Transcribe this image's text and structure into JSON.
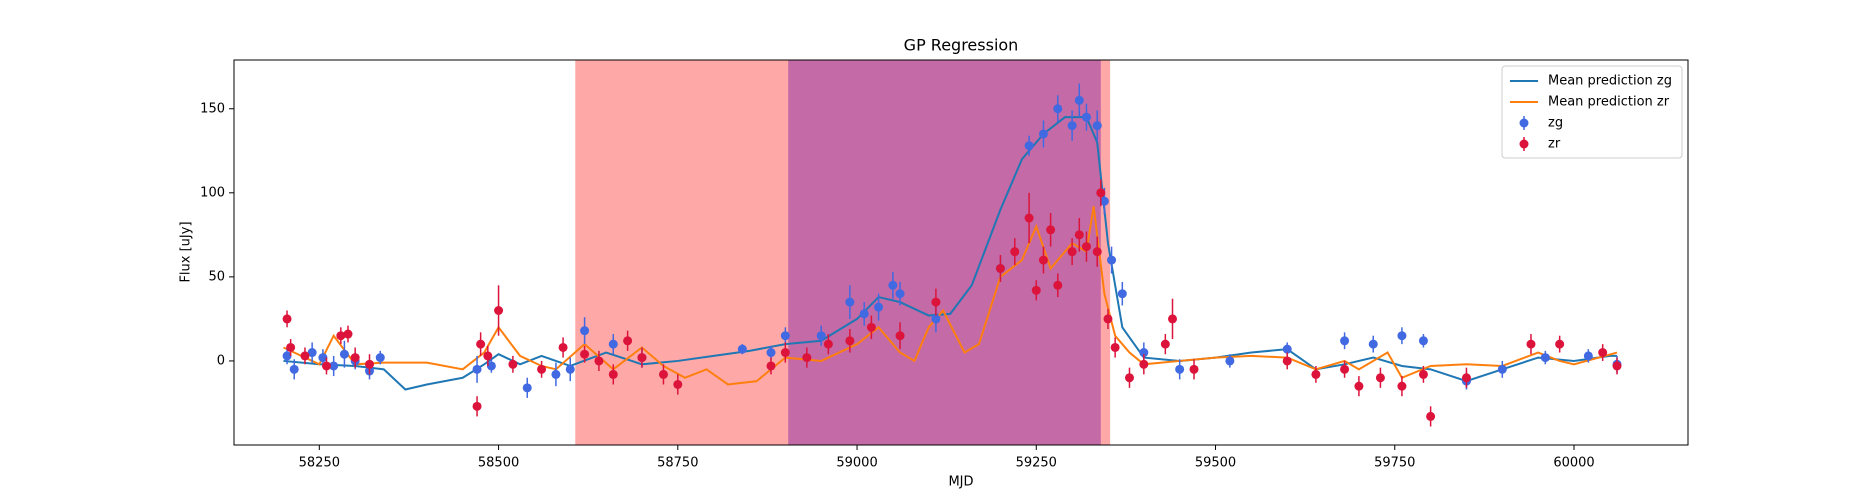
{
  "chart_data": {
    "type": "errorbar",
    "title": "GP Regression",
    "x_label": "MJD",
    "y_label": "Flux [uJy]",
    "xlim": [
      58131,
      60159
    ],
    "ylim": [
      -50,
      179
    ],
    "xticks": [
      58250,
      58500,
      58750,
      59000,
      59250,
      59500,
      59750,
      60000
    ],
    "yticks": [
      0,
      50,
      100,
      150
    ],
    "legend": "upper right",
    "spans": [
      {
        "start": 58607,
        "end": 59353,
        "color": "#ffa8a8"
      },
      {
        "start": 58904,
        "end": 59340,
        "color": "#c46aa6"
      }
    ],
    "lines": [
      {
        "name": "Mean prediction zg",
        "color": "#1f77b4",
        "x": [
          58200,
          58250,
          58300,
          58340,
          58370,
          58400,
          58450,
          58480,
          58500,
          58530,
          58560,
          58600,
          58650,
          58700,
          58750,
          58800,
          58850,
          58900,
          58950,
          59000,
          59030,
          59060,
          59100,
          59130,
          59160,
          59200,
          59230,
          59260,
          59290,
          59320,
          59335,
          59350,
          59370,
          59400,
          59450,
          59500,
          59550,
          59600,
          59640,
          59680,
          59720,
          59760,
          59800,
          59850,
          59900,
          59950,
          60000,
          60050,
          60060
        ],
        "values": [
          0,
          -2,
          -3,
          -5,
          -17,
          -14,
          -10,
          -2,
          4,
          -2,
          3,
          -3,
          5,
          -2,
          0,
          3,
          6,
          10,
          12,
          25,
          38,
          35,
          27,
          28,
          45,
          90,
          120,
          135,
          145,
          145,
          130,
          70,
          20,
          2,
          0,
          2,
          5,
          7,
          -5,
          -2,
          2,
          -3,
          -5,
          -12,
          -5,
          2,
          0,
          3,
          3
        ]
      },
      {
        "name": "Mean prediction zr",
        "color": "#ff7f0e",
        "x": [
          58200,
          58250,
          58270,
          58300,
          58340,
          58400,
          58450,
          58480,
          58500,
          58530,
          58560,
          58580,
          58620,
          58660,
          58700,
          58730,
          58760,
          58790,
          58820,
          58860,
          58880,
          58900,
          58950,
          59000,
          59030,
          59060,
          59080,
          59100,
          59120,
          59150,
          59170,
          59200,
          59230,
          59250,
          59270,
          59300,
          59320,
          59330,
          59345,
          59360,
          59380,
          59400,
          59450,
          59500,
          59550,
          59600,
          59640,
          59680,
          59700,
          59740,
          59760,
          59800,
          59850,
          59900,
          59950,
          59980,
          60000,
          60060
        ],
        "values": [
          8,
          -2,
          15,
          -2,
          -1,
          -1,
          -5,
          5,
          20,
          3,
          -3,
          -5,
          10,
          -5,
          8,
          -3,
          -10,
          -5,
          -14,
          -12,
          -5,
          2,
          0,
          10,
          20,
          5,
          0,
          20,
          30,
          5,
          10,
          50,
          60,
          80,
          55,
          70,
          65,
          92,
          40,
          15,
          5,
          -2,
          0,
          2,
          3,
          2,
          -5,
          0,
          -5,
          5,
          -10,
          -3,
          -2,
          -3,
          5,
          0,
          -2,
          5
        ]
      }
    ],
    "series": [
      {
        "name": "zg",
        "color": "#4169e1",
        "x": [
          58205,
          58215,
          58240,
          58255,
          58270,
          58285,
          58300,
          58320,
          58335,
          58470,
          58490,
          58540,
          58580,
          58600,
          58620,
          58660,
          58700,
          58840,
          58880,
          58900,
          58950,
          58990,
          59010,
          59030,
          59050,
          59060,
          59110,
          59200,
          59240,
          59260,
          59280,
          59300,
          59310,
          59320,
          59335,
          59345,
          59355,
          59370,
          59400,
          59450,
          59520,
          59600,
          59680,
          59720,
          59760,
          59790,
          59850,
          59900,
          59960,
          60020,
          60060
        ],
        "values": [
          3,
          -5,
          5,
          2,
          -3,
          4,
          0,
          -6,
          2,
          -5,
          -3,
          -16,
          -8,
          -5,
          18,
          10,
          2,
          7,
          5,
          15,
          15,
          35,
          28,
          32,
          45,
          40,
          25,
          55,
          128,
          135,
          150,
          140,
          155,
          145,
          140,
          95,
          60,
          40,
          5,
          -5,
          0,
          7,
          12,
          10,
          15,
          12,
          -12,
          -5,
          2,
          3,
          -2
        ],
        "errors": [
          5,
          6,
          6,
          5,
          6,
          8,
          5,
          5,
          4,
          8,
          4,
          6,
          7,
          7,
          8,
          6,
          6,
          3,
          4,
          5,
          6,
          10,
          7,
          8,
          8,
          7,
          8,
          6,
          6,
          8,
          8,
          9,
          10,
          8,
          9,
          8,
          8,
          7,
          6,
          6,
          4,
          4,
          5,
          5,
          5,
          4,
          5,
          5,
          4,
          4,
          5
        ]
      },
      {
        "name": "zr",
        "color": "#dc143c",
        "x": [
          58205,
          58210,
          58230,
          58260,
          58280,
          58290,
          58300,
          58320,
          58470,
          58475,
          58485,
          58500,
          58520,
          58560,
          58590,
          58620,
          58640,
          58660,
          58680,
          58700,
          58730,
          58750,
          58880,
          58900,
          58930,
          58960,
          58990,
          59020,
          59060,
          59110,
          59200,
          59220,
          59240,
          59250,
          59260,
          59270,
          59280,
          59300,
          59310,
          59320,
          59335,
          59340,
          59350,
          59360,
          59380,
          59400,
          59430,
          59440,
          59470,
          59600,
          59640,
          59680,
          59700,
          59730,
          59760,
          59790,
          59800,
          59850,
          59940,
          59980,
          60040,
          60060
        ],
        "values": [
          25,
          8,
          3,
          -3,
          15,
          16,
          2,
          -2,
          -27,
          10,
          3,
          30,
          -2,
          -5,
          8,
          4,
          0,
          -8,
          12,
          2,
          -8,
          -14,
          -3,
          5,
          2,
          10,
          12,
          20,
          15,
          35,
          55,
          65,
          85,
          42,
          60,
          78,
          45,
          65,
          75,
          68,
          65,
          100,
          25,
          8,
          -10,
          -2,
          10,
          25,
          -5,
          0,
          -8,
          -5,
          -15,
          -10,
          -15,
          -8,
          -33,
          -10,
          10,
          10,
          5,
          -3
        ],
        "errors": [
          5,
          5,
          5,
          5,
          5,
          5,
          6,
          6,
          6,
          7,
          6,
          15,
          5,
          5,
          6,
          5,
          6,
          6,
          6,
          6,
          6,
          6,
          5,
          6,
          6,
          6,
          7,
          7,
          8,
          8,
          8,
          8,
          15,
          6,
          8,
          10,
          7,
          8,
          10,
          9,
          9,
          8,
          6,
          6,
          6,
          6,
          6,
          12,
          6,
          5,
          5,
          5,
          6,
          6,
          6,
          5,
          6,
          6,
          6,
          5,
          5,
          5
        ]
      }
    ]
  }
}
